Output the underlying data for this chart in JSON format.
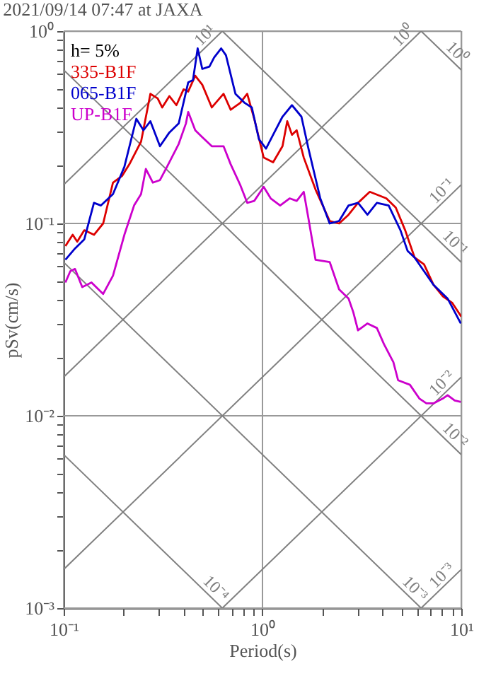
{
  "chart_data": {
    "type": "line",
    "title": "2021/09/14 07:47 at JAXA",
    "xlabel": "Period(s)",
    "ylabel": "pSv(cm/s)",
    "annotations": [
      "h= 5%"
    ],
    "log": "xy",
    "grid": true,
    "legend": "top left",
    "xlim": [
      0.1,
      10
    ],
    "ylim": [
      0.001,
      1
    ],
    "xticks": [
      {
        "value": 0.1,
        "label": "10⁻¹"
      },
      {
        "value": 0.2,
        "label": null
      },
      {
        "value": 0.3,
        "label": null
      },
      {
        "value": 0.4,
        "label": null
      },
      {
        "value": 0.5,
        "label": null
      },
      {
        "value": 0.6,
        "label": null
      },
      {
        "value": 0.7,
        "label": null
      },
      {
        "value": 0.8,
        "label": null
      },
      {
        "value": 0.9,
        "label": null
      },
      {
        "value": 1,
        "label": "10⁰"
      },
      {
        "value": 2,
        "label": null
      },
      {
        "value": 3,
        "label": null
      },
      {
        "value": 4,
        "label": null
      },
      {
        "value": 5,
        "label": null
      },
      {
        "value": 6,
        "label": null
      },
      {
        "value": 7,
        "label": null
      },
      {
        "value": 8,
        "label": null
      },
      {
        "value": 9,
        "label": null
      },
      {
        "value": 10,
        "label": "10¹"
      }
    ],
    "yticks": [
      {
        "value": 0.001,
        "label": "10⁻³"
      },
      {
        "value": 0.002,
        "label": null
      },
      {
        "value": 0.003,
        "label": null
      },
      {
        "value": 0.004,
        "label": null
      },
      {
        "value": 0.005,
        "label": null
      },
      {
        "value": 0.006,
        "label": null
      },
      {
        "value": 0.007,
        "label": null
      },
      {
        "value": 0.008,
        "label": null
      },
      {
        "value": 0.009,
        "label": null
      },
      {
        "value": 0.01,
        "label": "10⁻²"
      },
      {
        "value": 0.02,
        "label": null
      },
      {
        "value": 0.03,
        "label": null
      },
      {
        "value": 0.04,
        "label": null
      },
      {
        "value": 0.05,
        "label": null
      },
      {
        "value": 0.06,
        "label": null
      },
      {
        "value": 0.07,
        "label": null
      },
      {
        "value": 0.08,
        "label": null
      },
      {
        "value": 0.09,
        "label": null
      },
      {
        "value": 0.1,
        "label": "10⁻¹"
      },
      {
        "value": 0.2,
        "label": null
      },
      {
        "value": 0.3,
        "label": null
      },
      {
        "value": 0.4,
        "label": null
      },
      {
        "value": 0.5,
        "label": null
      },
      {
        "value": 0.6,
        "label": null
      },
      {
        "value": 0.7,
        "label": null
      },
      {
        "value": 0.8,
        "label": null
      },
      {
        "value": 0.9,
        "label": null
      },
      {
        "value": 1,
        "label": "10⁰"
      }
    ],
    "series": [
      {
        "name": "10¹",
        "color": "#808080",
        "x": [
          0.1,
          0.628
        ],
        "values": [
          0.159,
          1
        ]
      },
      {
        "name": "10⁰",
        "color": "#808080",
        "x": [
          0.1,
          6.28
        ],
        "values": [
          0.0159,
          1
        ]
      },
      {
        "name": "10⁻¹",
        "color": "#808080",
        "x": [
          0.1,
          10
        ],
        "values": [
          0.00159,
          0.159
        ]
      },
      {
        "name": "10⁻²",
        "color": "#808080",
        "x": [
          0.628,
          10
        ],
        "values": [
          0.001,
          0.0159
        ]
      },
      {
        "name": "10⁻³",
        "color": "#808080",
        "x": [
          6.28,
          10
        ],
        "values": [
          0.001,
          0.00159
        ]
      },
      {
        "name": "10⁰",
        "color": "#808080",
        "x": [
          6.28,
          10
        ],
        "values": [
          1,
          0.628
        ]
      },
      {
        "name": "10⁻¹",
        "color": "#808080",
        "x": [
          0.628,
          10
        ],
        "values": [
          1,
          0.0628
        ]
      },
      {
        "name": "10⁻²",
        "color": "#808080",
        "x": [
          0.1,
          10
        ],
        "values": [
          0.628,
          0.00628
        ]
      },
      {
        "name": "10⁻³",
        "color": "#808080",
        "x": [
          0.1,
          6.28
        ],
        "values": [
          0.0628,
          0.001
        ]
      },
      {
        "name": "10⁻⁴",
        "color": "#808080",
        "x": [
          0.1,
          0.628
        ],
        "values": [
          0.00628,
          0.001
        ]
      },
      {
        "name": "335-B1F",
        "color": "#dd0000",
        "x": [
          0.102,
          0.111,
          0.117,
          0.127,
          0.142,
          0.158,
          0.177,
          0.197,
          0.214,
          0.245,
          0.273,
          0.297,
          0.313,
          0.34,
          0.369,
          0.401,
          0.423,
          0.459,
          0.498,
          0.556,
          0.637,
          0.692,
          0.772,
          0.838,
          0.909,
          1.014,
          1.131,
          1.261,
          1.332,
          1.407,
          1.486,
          1.613,
          1.849,
          2.178,
          2.429,
          2.71,
          3.023,
          3.465,
          4.196,
          4.68,
          5.221,
          5.824,
          6.496,
          7.244,
          8.081,
          9.013,
          10
        ],
        "values": [
          0.0762,
          0.0873,
          0.0804,
          0.0922,
          0.0873,
          0.1,
          0.163,
          0.177,
          0.203,
          0.266,
          0.472,
          0.447,
          0.401,
          0.459,
          0.412,
          0.498,
          0.485,
          0.586,
          0.526,
          0.401,
          0.472,
          0.39,
          0.423,
          0.472,
          0.35,
          0.22,
          0.208,
          0.252,
          0.34,
          0.289,
          0.305,
          0.22,
          0.15,
          0.103,
          0.1,
          0.111,
          0.128,
          0.146,
          0.135,
          0.121,
          0.0922,
          0.0665,
          0.0613,
          0.048,
          0.0418,
          0.0386,
          0.0328
        ]
      },
      {
        "name": "065-B1F",
        "color": "#0000cc",
        "x": [
          0.102,
          0.114,
          0.127,
          0.142,
          0.154,
          0.177,
          0.202,
          0.232,
          0.252,
          0.273,
          0.305,
          0.34,
          0.379,
          0.423,
          0.447,
          0.472,
          0.498,
          0.541,
          0.571,
          0.62,
          0.655,
          0.731,
          0.815,
          0.884,
          0.96,
          1.042,
          1.131,
          1.261,
          1.407,
          1.57,
          1.703,
          1.953,
          2.178,
          2.429,
          2.71,
          3.023,
          3.373,
          3.762,
          4.312,
          4.943,
          5.365,
          5.824,
          7.244,
          8.535,
          9.94
        ],
        "values": [
          0.0647,
          0.0741,
          0.0827,
          0.128,
          0.124,
          0.142,
          0.197,
          0.35,
          0.305,
          0.34,
          0.252,
          0.297,
          0.331,
          0.541,
          0.556,
          0.813,
          0.636,
          0.654,
          0.729,
          0.813,
          0.749,
          0.472,
          0.423,
          0.401,
          0.274,
          0.245,
          0.289,
          0.359,
          0.412,
          0.359,
          0.245,
          0.135,
          0.1,
          0.103,
          0.124,
          0.128,
          0.111,
          0.128,
          0.124,
          0.0922,
          0.0721,
          0.0665,
          0.048,
          0.0407,
          0.0302
        ]
      },
      {
        "name": "UP-B1F",
        "color": "#cc00cc",
        "x": [
          0.102,
          0.108,
          0.114,
          0.124,
          0.138,
          0.158,
          0.177,
          0.202,
          0.226,
          0.245,
          0.259,
          0.281,
          0.305,
          0.331,
          0.379,
          0.412,
          0.423,
          0.459,
          0.498,
          0.556,
          0.637,
          0.692,
          0.772,
          0.838,
          0.909,
          1.014,
          1.1,
          1.227,
          1.369,
          1.486,
          1.613,
          1.703,
          1.849,
          2.178,
          2.429,
          2.71,
          2.862,
          3.023,
          3.373,
          3.762,
          4.083,
          4.554,
          4.81,
          5.514,
          6.151,
          6.675,
          7.244,
          8.081,
          8.535,
          9.265,
          9.94
        ],
        "values": [
          0.0493,
          0.0565,
          0.058,
          0.0467,
          0.0493,
          0.043,
          0.0535,
          0.0873,
          0.124,
          0.142,
          0.192,
          0.163,
          0.168,
          0.197,
          0.259,
          0.331,
          0.38,
          0.305,
          0.281,
          0.252,
          0.252,
          0.203,
          0.159,
          0.128,
          0.131,
          0.155,
          0.135,
          0.124,
          0.135,
          0.131,
          0.146,
          0.106,
          0.0647,
          0.063,
          0.0454,
          0.0407,
          0.0346,
          0.0278,
          0.0302,
          0.0286,
          0.0236,
          0.019,
          0.0153,
          0.0145,
          0.0123,
          0.0116,
          0.0116,
          0.0123,
          0.0128,
          0.012,
          0.0118
        ]
      }
    ]
  }
}
